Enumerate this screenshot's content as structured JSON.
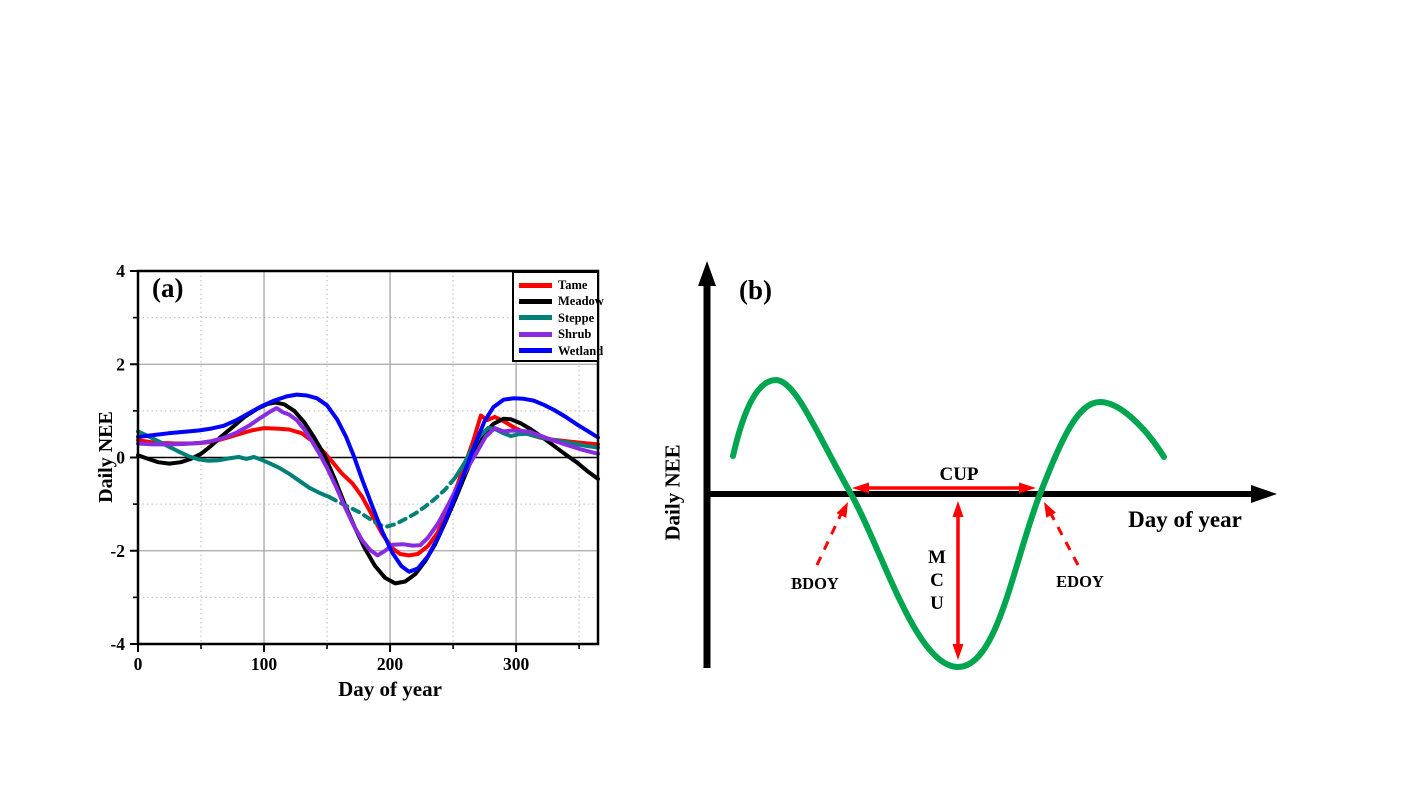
{
  "figure": {
    "panel_a_label": "(a)",
    "panel_b_label": "(b)"
  },
  "chart_data": {
    "type": "line",
    "title": "",
    "xlabel": "Day of year",
    "ylabel": "Daily NEE",
    "xlim": [
      0,
      365
    ],
    "ylim": [
      -4,
      4
    ],
    "x_ticks": [
      0,
      100,
      200,
      300
    ],
    "x_minor_ticks": [
      50,
      150,
      250,
      350
    ],
    "y_ticks": [
      -4,
      -2,
      0,
      2,
      4
    ],
    "y_minor_ticks": [
      -3,
      -1,
      1,
      3
    ],
    "grid": {
      "solid_x": [
        100,
        200,
        300
      ],
      "solid_y": [
        -2,
        2
      ],
      "dotted_x": [
        50,
        150,
        250,
        350
      ],
      "dotted_y": [
        -3,
        -1,
        1,
        3
      ],
      "zero_line": true
    },
    "legend_position": "top-right",
    "series": [
      {
        "name": "Tame",
        "color": "#ff0000",
        "points": [
          [
            0,
            0.37
          ],
          [
            10,
            0.33
          ],
          [
            20,
            0.31
          ],
          [
            30,
            0.3
          ],
          [
            40,
            0.3
          ],
          [
            50,
            0.31
          ],
          [
            60,
            0.34
          ],
          [
            70,
            0.42
          ],
          [
            80,
            0.5
          ],
          [
            90,
            0.58
          ],
          [
            100,
            0.63
          ],
          [
            110,
            0.62
          ],
          [
            120,
            0.6
          ],
          [
            130,
            0.52
          ],
          [
            140,
            0.32
          ],
          [
            148,
            0.1
          ],
          [
            155,
            -0.12
          ],
          [
            162,
            -0.35
          ],
          [
            170,
            -0.55
          ],
          [
            178,
            -0.85
          ],
          [
            186,
            -1.25
          ],
          [
            194,
            -1.65
          ],
          [
            202,
            -1.95
          ],
          [
            208,
            -2.07
          ],
          [
            215,
            -2.1
          ],
          [
            222,
            -2.07
          ],
          [
            230,
            -1.9
          ],
          [
            238,
            -1.6
          ],
          [
            246,
            -1.1
          ],
          [
            254,
            -0.55
          ],
          [
            260,
            -0.1
          ],
          [
            266,
            0.35
          ],
          [
            272,
            0.9
          ],
          [
            277,
            0.8
          ],
          [
            283,
            0.87
          ],
          [
            290,
            0.78
          ],
          [
            300,
            0.62
          ],
          [
            310,
            0.5
          ],
          [
            320,
            0.42
          ],
          [
            330,
            0.38
          ],
          [
            340,
            0.35
          ],
          [
            350,
            0.32
          ],
          [
            365,
            0.28
          ]
        ]
      },
      {
        "name": "Meadow",
        "color": "#000000",
        "points": [
          [
            0,
            0.05
          ],
          [
            8,
            -0.03
          ],
          [
            16,
            -0.1
          ],
          [
            25,
            -0.13
          ],
          [
            34,
            -0.1
          ],
          [
            42,
            -0.03
          ],
          [
            50,
            0.08
          ],
          [
            58,
            0.25
          ],
          [
            66,
            0.45
          ],
          [
            75,
            0.65
          ],
          [
            85,
            0.88
          ],
          [
            95,
            1.05
          ],
          [
            103,
            1.15
          ],
          [
            109,
            1.18
          ],
          [
            116,
            1.14
          ],
          [
            124,
            1.0
          ],
          [
            132,
            0.75
          ],
          [
            140,
            0.42
          ],
          [
            148,
            0.05
          ],
          [
            156,
            -0.45
          ],
          [
            164,
            -1.0
          ],
          [
            172,
            -1.5
          ],
          [
            180,
            -1.95
          ],
          [
            188,
            -2.32
          ],
          [
            196,
            -2.58
          ],
          [
            204,
            -2.7
          ],
          [
            212,
            -2.66
          ],
          [
            220,
            -2.5
          ],
          [
            228,
            -2.22
          ],
          [
            236,
            -1.85
          ],
          [
            244,
            -1.38
          ],
          [
            252,
            -0.88
          ],
          [
            260,
            -0.35
          ],
          [
            267,
            0.1
          ],
          [
            274,
            0.48
          ],
          [
            282,
            0.72
          ],
          [
            290,
            0.83
          ],
          [
            296,
            0.82
          ],
          [
            304,
            0.73
          ],
          [
            312,
            0.6
          ],
          [
            320,
            0.45
          ],
          [
            330,
            0.25
          ],
          [
            340,
            0.05
          ],
          [
            348,
            -0.1
          ],
          [
            356,
            -0.28
          ],
          [
            365,
            -0.46
          ]
        ]
      },
      {
        "name": "Steppe",
        "color": "#008077",
        "dashed_between": [
          150,
          250
        ],
        "points": [
          [
            0,
            0.56
          ],
          [
            8,
            0.46
          ],
          [
            16,
            0.35
          ],
          [
            24,
            0.24
          ],
          [
            32,
            0.13
          ],
          [
            40,
            0.03
          ],
          [
            48,
            -0.04
          ],
          [
            56,
            -0.07
          ],
          [
            64,
            -0.06
          ],
          [
            72,
            -0.02
          ],
          [
            80,
            0.01
          ],
          [
            86,
            -0.03
          ],
          [
            92,
            0.01
          ],
          [
            98,
            -0.05
          ],
          [
            104,
            -0.12
          ],
          [
            112,
            -0.22
          ],
          [
            120,
            -0.35
          ],
          [
            128,
            -0.5
          ],
          [
            136,
            -0.65
          ],
          [
            144,
            -0.76
          ],
          [
            152,
            -0.85
          ],
          [
            160,
            -0.97
          ],
          [
            168,
            -1.07
          ],
          [
            176,
            -1.18
          ],
          [
            184,
            -1.32
          ],
          [
            192,
            -1.45
          ],
          [
            198,
            -1.48
          ],
          [
            205,
            -1.42
          ],
          [
            212,
            -1.32
          ],
          [
            220,
            -1.2
          ],
          [
            228,
            -1.05
          ],
          [
            236,
            -0.88
          ],
          [
            244,
            -0.68
          ],
          [
            252,
            -0.42
          ],
          [
            259,
            -0.12
          ],
          [
            265,
            0.18
          ],
          [
            271,
            0.45
          ],
          [
            278,
            0.64
          ],
          [
            284,
            0.6
          ],
          [
            290,
            0.52
          ],
          [
            296,
            0.46
          ],
          [
            302,
            0.5
          ],
          [
            308,
            0.51
          ],
          [
            315,
            0.46
          ],
          [
            325,
            0.4
          ],
          [
            335,
            0.35
          ],
          [
            345,
            0.3
          ],
          [
            355,
            0.25
          ],
          [
            365,
            0.21
          ]
        ]
      },
      {
        "name": "Shrub",
        "color": "#8a2be2",
        "points": [
          [
            0,
            0.3
          ],
          [
            12,
            0.28
          ],
          [
            24,
            0.28
          ],
          [
            36,
            0.29
          ],
          [
            48,
            0.31
          ],
          [
            58,
            0.35
          ],
          [
            68,
            0.42
          ],
          [
            78,
            0.53
          ],
          [
            88,
            0.68
          ],
          [
            96,
            0.83
          ],
          [
            104,
            0.97
          ],
          [
            110,
            1.06
          ],
          [
            115,
            0.97
          ],
          [
            120,
            0.92
          ],
          [
            126,
            0.8
          ],
          [
            132,
            0.6
          ],
          [
            138,
            0.35
          ],
          [
            144,
            0.08
          ],
          [
            150,
            -0.22
          ],
          [
            157,
            -0.62
          ],
          [
            164,
            -1.05
          ],
          [
            171,
            -1.45
          ],
          [
            178,
            -1.78
          ],
          [
            184,
            -1.98
          ],
          [
            190,
            -2.1
          ],
          [
            196,
            -2.0
          ],
          [
            202,
            -1.87
          ],
          [
            210,
            -1.86
          ],
          [
            218,
            -1.89
          ],
          [
            224,
            -1.88
          ],
          [
            230,
            -1.72
          ],
          [
            238,
            -1.42
          ],
          [
            246,
            -1.02
          ],
          [
            254,
            -0.6
          ],
          [
            262,
            -0.2
          ],
          [
            269,
            0.12
          ],
          [
            276,
            0.45
          ],
          [
            283,
            0.63
          ],
          [
            290,
            0.56
          ],
          [
            297,
            0.58
          ],
          [
            304,
            0.57
          ],
          [
            311,
            0.55
          ],
          [
            318,
            0.48
          ],
          [
            328,
            0.38
          ],
          [
            340,
            0.27
          ],
          [
            352,
            0.17
          ],
          [
            365,
            0.08
          ]
        ]
      },
      {
        "name": "Wetland",
        "color": "#0000ff",
        "points": [
          [
            0,
            0.44
          ],
          [
            12,
            0.48
          ],
          [
            24,
            0.52
          ],
          [
            36,
            0.55
          ],
          [
            48,
            0.58
          ],
          [
            58,
            0.62
          ],
          [
            68,
            0.68
          ],
          [
            78,
            0.8
          ],
          [
            88,
            0.95
          ],
          [
            98,
            1.1
          ],
          [
            108,
            1.22
          ],
          [
            118,
            1.31
          ],
          [
            126,
            1.35
          ],
          [
            134,
            1.33
          ],
          [
            142,
            1.27
          ],
          [
            150,
            1.12
          ],
          [
            158,
            0.82
          ],
          [
            165,
            0.45
          ],
          [
            171,
            0.05
          ],
          [
            178,
            -0.48
          ],
          [
            186,
            -1.05
          ],
          [
            194,
            -1.6
          ],
          [
            202,
            -2.05
          ],
          [
            209,
            -2.33
          ],
          [
            215,
            -2.45
          ],
          [
            222,
            -2.38
          ],
          [
            230,
            -2.12
          ],
          [
            238,
            -1.72
          ],
          [
            246,
            -1.22
          ],
          [
            254,
            -0.68
          ],
          [
            261,
            -0.18
          ],
          [
            268,
            0.32
          ],
          [
            275,
            0.78
          ],
          [
            282,
            1.08
          ],
          [
            290,
            1.24
          ],
          [
            298,
            1.27
          ],
          [
            306,
            1.26
          ],
          [
            314,
            1.22
          ],
          [
            322,
            1.13
          ],
          [
            330,
            1.02
          ],
          [
            340,
            0.86
          ],
          [
            350,
            0.68
          ],
          [
            358,
            0.55
          ],
          [
            365,
            0.43
          ]
        ]
      }
    ]
  },
  "panel_b": {
    "ylabel": "Daily NEE",
    "xlabel": "Day of year",
    "cup_label": "CUP",
    "mcu_letters": [
      "M",
      "C",
      "U"
    ],
    "bdoy_label": "BDOY",
    "edoy_label": "EDOY",
    "curve_color": "#00a550",
    "annotation_color": "#ff0000"
  }
}
